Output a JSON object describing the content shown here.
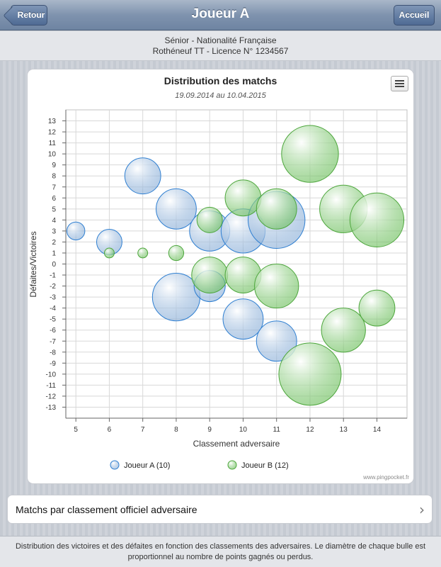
{
  "navbar": {
    "back_label": "Retour",
    "title": "Joueur A",
    "home_label": "Accueil"
  },
  "player": {
    "line1": "Sénior - Nationalité Française",
    "line2": "Rothéneuf TT - Licence N° 1234567"
  },
  "chart_data": {
    "type": "bubble",
    "title": "Distribution des matchs",
    "subtitle": "19.09.2014 au 10.04.2015",
    "xlabel": "Classement adversaire",
    "ylabel": "Défaites/Victoires",
    "xlim": [
      4.7,
      14.9
    ],
    "ylim": [
      -14,
      14
    ],
    "x_ticks": [
      5,
      6,
      7,
      8,
      9,
      10,
      11,
      12,
      13,
      14
    ],
    "y_ticks": [
      13,
      12,
      11,
      10,
      9,
      8,
      7,
      6,
      5,
      4,
      3,
      2,
      1,
      0,
      -1,
      -2,
      -3,
      -4,
      -5,
      -6,
      -7,
      -8,
      -9,
      -10,
      -11,
      -12,
      -13
    ],
    "grid": true,
    "legend_position": "bottom",
    "series": [
      {
        "name": "Joueur A (10)",
        "color": "#4a90d9",
        "points": [
          {
            "x": 5,
            "y": 3,
            "z": 1
          },
          {
            "x": 6,
            "y": 2,
            "z": 2
          },
          {
            "x": 7,
            "y": 8,
            "z": 4
          },
          {
            "x": 8,
            "y": 5,
            "z": 5
          },
          {
            "x": 8,
            "y": -3,
            "z": 7
          },
          {
            "x": 9,
            "y": 3,
            "z": 5
          },
          {
            "x": 9,
            "y": -2,
            "z": 3
          },
          {
            "x": 10,
            "y": 3,
            "z": 6
          },
          {
            "x": 10,
            "y": -5,
            "z": 5
          },
          {
            "x": 11,
            "y": 4,
            "z": 10
          },
          {
            "x": 11,
            "y": -7,
            "z": 5
          }
        ]
      },
      {
        "name": "Joueur B (12)",
        "color": "#5cb85c",
        "points": [
          {
            "x": 6,
            "y": 1,
            "z": 0.3
          },
          {
            "x": 7,
            "y": 1,
            "z": 0.3
          },
          {
            "x": 8,
            "y": 1,
            "z": 0.7
          },
          {
            "x": 9,
            "y": 4,
            "z": 2
          },
          {
            "x": 9,
            "y": -1,
            "z": 4
          },
          {
            "x": 10,
            "y": 6,
            "z": 4
          },
          {
            "x": 10,
            "y": -1,
            "z": 4
          },
          {
            "x": 11,
            "y": 5,
            "z": 5
          },
          {
            "x": 11,
            "y": -2,
            "z": 6
          },
          {
            "x": 12,
            "y": 10,
            "z": 10
          },
          {
            "x": 12,
            "y": -10,
            "z": 12
          },
          {
            "x": 13,
            "y": 5,
            "z": 7
          },
          {
            "x": 13,
            "y": -6,
            "z": 6
          },
          {
            "x": 14,
            "y": 4,
            "z": 9
          },
          {
            "x": 14,
            "y": -4,
            "z": 4
          }
        ]
      }
    ]
  },
  "credit": "www.pingpocket.fr",
  "list_row": {
    "label": "Matchs par classement officiel adversaire"
  },
  "footer": {
    "text": "Distribution des victoires et des défaites en fonction des classements des adversaires. Le diamètre de chaque bulle est proportionnel au nombre de points gagnés ou perdus."
  }
}
